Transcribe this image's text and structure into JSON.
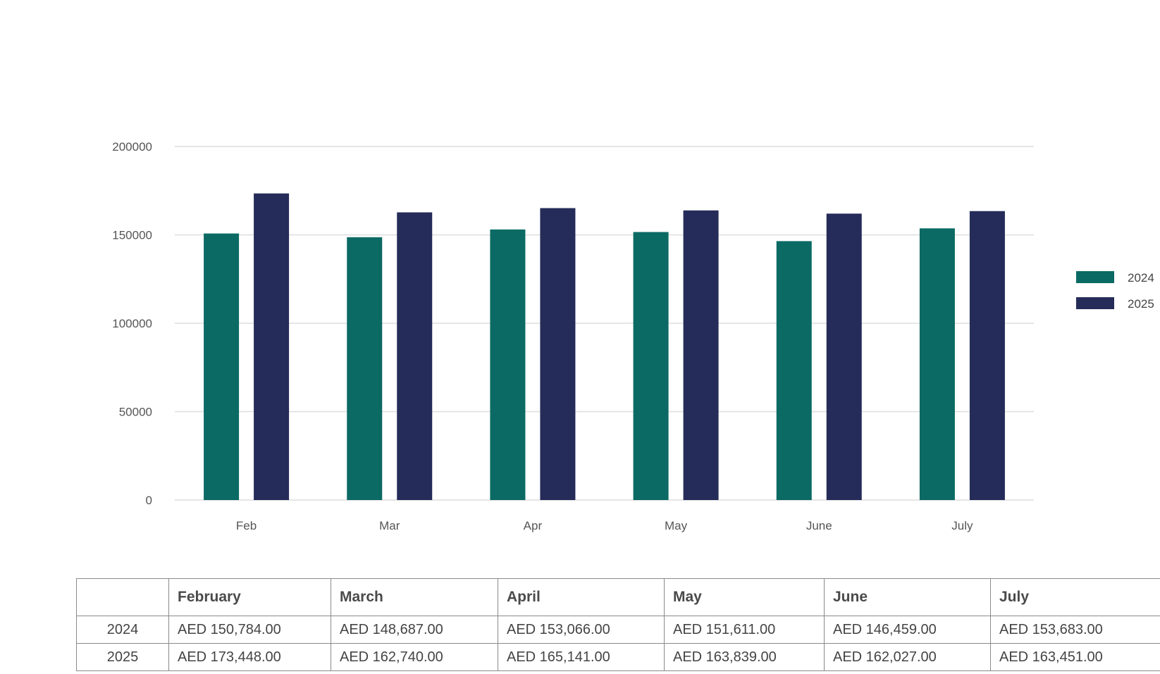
{
  "chart_data": {
    "type": "bar",
    "categories": [
      "Feb",
      "Mar",
      "Apr",
      "May",
      "June",
      "July"
    ],
    "series": [
      {
        "name": "2024",
        "color": "#0b6a63",
        "values": [
          150784,
          148687,
          153066,
          151611,
          146459,
          153683
        ]
      },
      {
        "name": "2025",
        "color": "#252c59",
        "values": [
          173448,
          162740,
          165141,
          163839,
          162027,
          163451
        ]
      }
    ],
    "ylim": [
      0,
      200000
    ],
    "yticks": [
      "0",
      "50000",
      "100000",
      "150000",
      "200000"
    ],
    "grid": true,
    "legend_position": "right"
  },
  "table": {
    "headers": [
      "",
      "February",
      "March",
      "April",
      "May",
      "June",
      "July"
    ],
    "rows": [
      {
        "label": "2024",
        "cells": [
          "AED 150,784.00",
          "AED 148,687.00",
          "AED 153,066.00",
          "AED 151,611.00",
          "AED 146,459.00",
          "AED 153,683.00"
        ]
      },
      {
        "label": "2025",
        "cells": [
          "AED 173,448.00",
          "AED 162,740.00",
          "AED 165,141.00",
          "AED 163,839.00",
          "AED 162,027.00",
          "AED 163,451.00"
        ]
      }
    ]
  }
}
